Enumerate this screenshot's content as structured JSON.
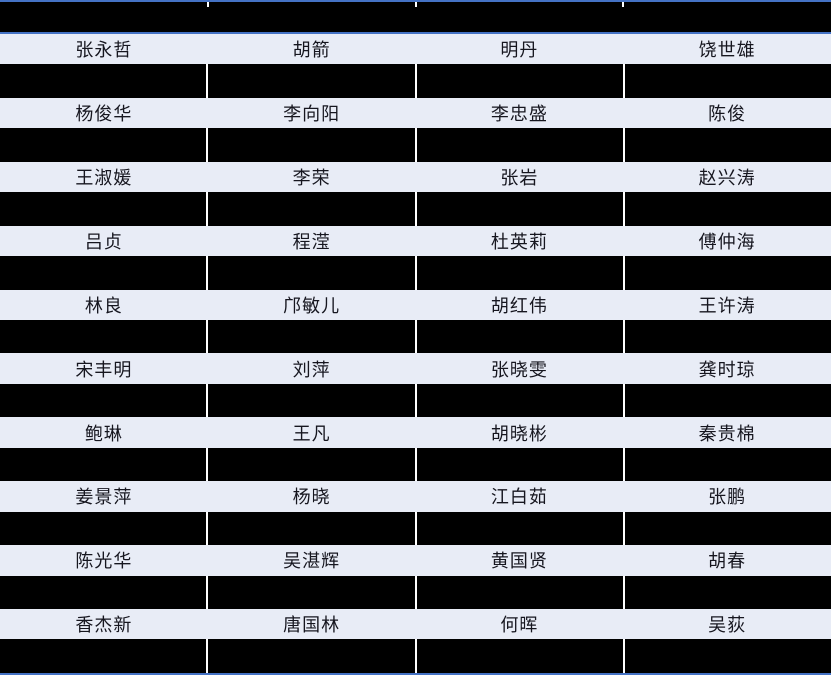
{
  "table": {
    "columns": 4,
    "header_redacted": true,
    "redacted_rows_between_name_rows": true,
    "name_rows": [
      [
        "张永哲",
        "胡箭",
        "明丹",
        "饶世雄"
      ],
      [
        "杨俊华",
        "李向阳",
        "李忠盛",
        "陈俊"
      ],
      [
        "王淑媛",
        "李荣",
        "张岩",
        "赵兴涛"
      ],
      [
        "吕贞",
        "程滢",
        "杜英莉",
        "傅仲海"
      ],
      [
        "林良",
        "邝敏儿",
        "胡红伟",
        "王许涛"
      ],
      [
        "宋丰明",
        "刘萍",
        "张晓雯",
        "龚时琼"
      ],
      [
        "鲍琳",
        "王凡",
        "胡晓彬",
        "秦贵棉"
      ],
      [
        "姜景萍",
        "杨晓",
        "江白茹",
        "张鹏"
      ],
      [
        "陈光华",
        "吴湛辉",
        "黄国贤",
        "胡春"
      ],
      [
        "香杰新",
        "唐国林",
        "何晖",
        "吴荻"
      ]
    ]
  },
  "colors": {
    "border_blue": "#4472c4",
    "name_row_background": "#e8ecf6",
    "redaction_black": "#000000",
    "name_text": "#16161f",
    "column_gap_white": "#ffffff"
  }
}
